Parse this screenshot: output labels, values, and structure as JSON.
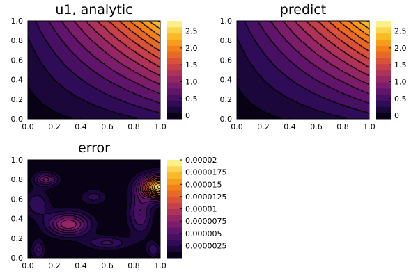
{
  "chart_data": [
    {
      "type": "heatmap",
      "contour": true,
      "title": "u1, analytic",
      "xlabel": "",
      "ylabel": "",
      "xlim": [
        0,
        1
      ],
      "ylim": [
        0,
        1
      ],
      "xticks": [
        "0.0",
        "0.2",
        "0.4",
        "0.6",
        "0.8",
        "1.0"
      ],
      "yticks": [
        "0.0",
        "0.2",
        "0.4",
        "0.6",
        "0.8",
        "1.0"
      ],
      "colorbar": {
        "range": [
          -0.1,
          2.8
        ],
        "ticks": [
          0,
          0.5,
          1.0,
          1.5,
          2.0,
          2.5
        ],
        "tick_labels": [
          "0",
          "0.5",
          "1.0",
          "1.5",
          "2.0",
          "2.5"
        ]
      },
      "grid": false,
      "colormap": "inferno"
    },
    {
      "type": "heatmap",
      "contour": true,
      "title": "predict",
      "xlabel": "",
      "ylabel": "",
      "xlim": [
        0,
        1
      ],
      "ylim": [
        0,
        1
      ],
      "xticks": [
        "0.0",
        "0.2",
        "0.4",
        "0.6",
        "0.8",
        "1.0"
      ],
      "yticks": [
        "0.0",
        "0.2",
        "0.4",
        "0.6",
        "0.8",
        "1.0"
      ],
      "colorbar": {
        "range": [
          -0.1,
          2.8
        ],
        "ticks": [
          0,
          0.5,
          1.0,
          1.5,
          2.0,
          2.5
        ],
        "tick_labels": [
          "0",
          "0.5",
          "1.0",
          "1.5",
          "2.0",
          "2.5"
        ]
      },
      "grid": false,
      "colormap": "inferno"
    },
    {
      "type": "heatmap",
      "contour": true,
      "title": "error",
      "xlabel": "",
      "ylabel": "",
      "xlim": [
        0,
        1
      ],
      "ylim": [
        0,
        1
      ],
      "xticks": [
        "0.0",
        "0.2",
        "0.4",
        "0.6",
        "0.8",
        "1.0"
      ],
      "yticks": [
        "0.0",
        "0.2",
        "0.4",
        "0.6",
        "0.8",
        "1.0"
      ],
      "colorbar": {
        "range": [
          0,
          2e-05
        ],
        "ticks": [
          2.5e-06,
          5e-06,
          7.5e-06,
          1e-05,
          1.25e-05,
          1.5e-05,
          1.75e-05,
          2e-05
        ],
        "tick_labels": [
          "0.0000025",
          "0.000005",
          "0.0000075",
          "0.00001",
          "0.0000125",
          "0.000015",
          "0.0000175",
          "0.00002"
        ]
      },
      "grid": false,
      "colormap": "inferno"
    }
  ]
}
